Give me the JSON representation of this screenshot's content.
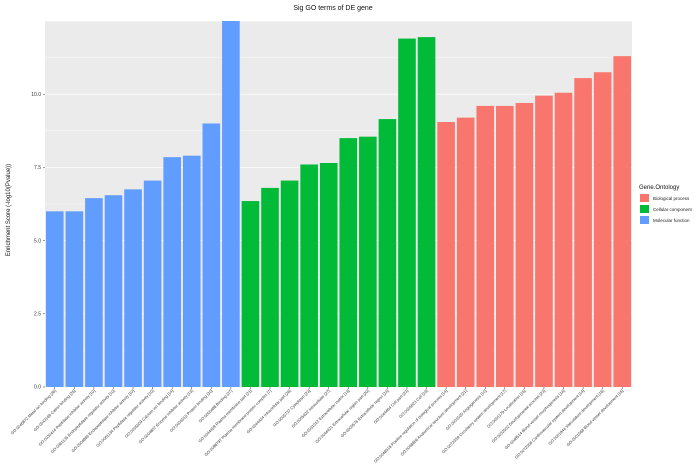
{
  "chart_data": {
    "type": "bar",
    "title": "Sig GO terms of DE gene",
    "xlabel": "",
    "ylabel": "Enrichment Score (-log10(Pvalue))",
    "ylim": [
      0,
      12.5
    ],
    "yticks": [
      "0.0",
      "2.5",
      "5.0",
      "7.5",
      "10.0"
    ],
    "ytick_values": [
      0,
      2.5,
      5.0,
      7.5,
      10.0
    ],
    "legend": {
      "title": "Gene.Ontology",
      "position": "right",
      "entries": [
        {
          "label": "Biological process",
          "color": "#F8766D"
        },
        {
          "label": "Cellular component",
          "color": "#00BA38"
        },
        {
          "label": "Molecular function",
          "color": "#619CFF"
        }
      ]
    },
    "colors": {
      "Molecular function": "#619CFF",
      "Cellular component": "#00BA38",
      "Biological process": "#F8766D",
      "panel": "#EBEBEB",
      "grid": "#FFFFFF"
    },
    "bars": [
      {
        "label": "GO:0046872 Metal ion binding [26]",
        "value": 6.0,
        "group": "Molecular function"
      },
      {
        "label": "GO:0043169 Cation binding [26]",
        "value": 6.0,
        "group": "Molecular function"
      },
      {
        "label": "GO:0030414 Peptidase inhibitor activity [10]",
        "value": 6.45,
        "group": "Molecular function"
      },
      {
        "label": "GO:0061135 Endopeptidase regulator activity [10]",
        "value": 6.55,
        "group": "Molecular function"
      },
      {
        "label": "GO:0004866 Endopeptidase inhibitor activity [10]",
        "value": 6.75,
        "group": "Molecular function"
      },
      {
        "label": "GO:0061134 Peptidase regulator activity [10]",
        "value": 7.05,
        "group": "Molecular function"
      },
      {
        "label": "GO:0005509 Calcium ion binding [14]",
        "value": 7.85,
        "group": "Molecular function"
      },
      {
        "label": "GO:0004857 Enzyme inhibitor activity [13]",
        "value": 7.9,
        "group": "Molecular function"
      },
      {
        "label": "GO:0005515 Protein binding [30]",
        "value": 9.0,
        "group": "Molecular function"
      },
      {
        "label": "GO:0005488 Binding [37]",
        "value": 12.5,
        "group": "Molecular function"
      },
      {
        "label": "GO:0044459 Plasma membrane part [21]",
        "value": 6.35,
        "group": "Cellular component"
      },
      {
        "label": "GO:0098797 Plasma membrane protein complex [7]",
        "value": 6.8,
        "group": "Cellular component"
      },
      {
        "label": "GO:0044424 Intracellular part [26]",
        "value": 7.05,
        "group": "Cellular component"
      },
      {
        "label": "GO:0005737 Cytoplasm [23]",
        "value": 7.6,
        "group": "Cellular component"
      },
      {
        "label": "GO:0005622 Intracellular [27]",
        "value": 7.65,
        "group": "Cellular component"
      },
      {
        "label": "GO:0031012 Extracellular matrix [13]",
        "value": 8.5,
        "group": "Cellular component"
      },
      {
        "label": "GO:0044421 Extracellular region part [20]",
        "value": 8.55,
        "group": "Cellular component"
      },
      {
        "label": "GO:0005576 Extracellular region [24]",
        "value": 9.15,
        "group": "Cellular component"
      },
      {
        "label": "GO:0044464 Cell part [33]",
        "value": 11.9,
        "group": "Cellular component"
      },
      {
        "label": "GO:0005623 Cell [33]",
        "value": 11.95,
        "group": "Cellular component"
      },
      {
        "label": "GO:0048518 Positive regulation of biological process [14]",
        "value": 9.05,
        "group": "Biological process"
      },
      {
        "label": "GO:0048856 Anatomical structure development [21]",
        "value": 9.2,
        "group": "Biological process"
      },
      {
        "label": "GO:0001525 Angiogenesis [10]",
        "value": 9.6,
        "group": "Biological process"
      },
      {
        "label": "GO:0072359 Circulatory system development [17]",
        "value": 9.6,
        "group": "Biological process"
      },
      {
        "label": "GO:0051179 Localization [16]",
        "value": 9.7,
        "group": "Biological process"
      },
      {
        "label": "GO:0032502 Developmental process [23]",
        "value": 9.95,
        "group": "Biological process"
      },
      {
        "label": "GO:0048514 Blood vessel morphogenesis [14]",
        "value": 10.05,
        "group": "Biological process"
      },
      {
        "label": "GO:0072358 Cardiovascular system development [14]",
        "value": 10.55,
        "group": "Biological process"
      },
      {
        "label": "GO:0001944 Vasculature development [16]",
        "value": 10.75,
        "group": "Biological process"
      },
      {
        "label": "GO:0001568 Blood vessel development [16]",
        "value": 11.3,
        "group": "Biological process"
      }
    ]
  }
}
